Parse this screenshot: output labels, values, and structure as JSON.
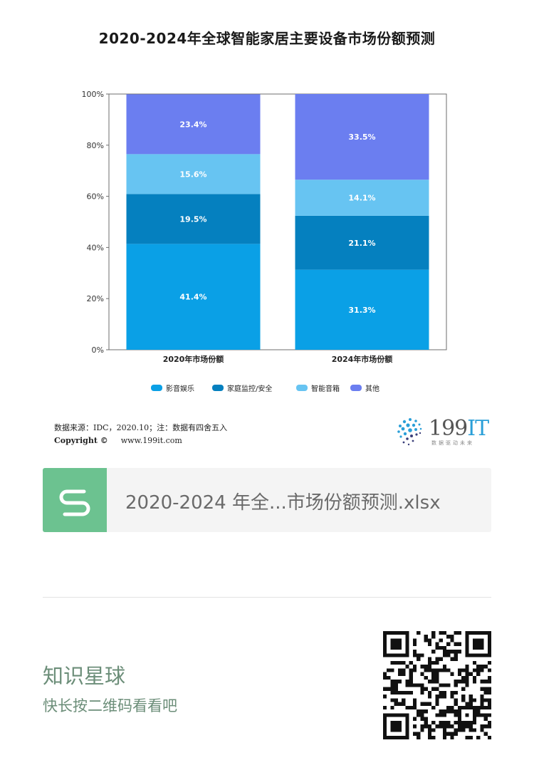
{
  "chart_data": {
    "type": "bar",
    "stacked": true,
    "title": "2020-2024年全球智能家居主要设备市场份额预测",
    "categories": [
      "2020年市场份额",
      "2024年市场份额"
    ],
    "series": [
      {
        "name": "影音娱乐",
        "color": "#0aa0e6",
        "values": [
          41.4,
          31.3
        ],
        "labels": [
          "41.4%",
          "31.3%"
        ]
      },
      {
        "name": "家庭监控/安全",
        "color": "#0580bf",
        "values": [
          19.5,
          21.1
        ],
        "labels": [
          "19.5%",
          "21.1%"
        ]
      },
      {
        "name": "智能音箱",
        "color": "#67c4f2",
        "values": [
          15.6,
          14.1
        ],
        "labels": [
          "15.6%",
          "14.1%"
        ]
      },
      {
        "name": "其他",
        "color": "#6b7ef0",
        "values": [
          23.4,
          33.5
        ],
        "labels": [
          "23.4%",
          "33.5%"
        ]
      }
    ],
    "ylim": [
      0,
      100
    ],
    "yticks": [
      "0%",
      "20%",
      "40%",
      "60%",
      "80%",
      "100%"
    ],
    "legend_position": "bottom",
    "grid": false
  },
  "source": {
    "text": "数据来源：IDC，2020.10；注：数据有四舍五入",
    "copyright": "Copyright ©",
    "website": "www.199it.com"
  },
  "logo": {
    "main": "199",
    "accent": "IT",
    "sub": "数据驱动未来"
  },
  "file_card": {
    "icon_letter": "S",
    "name": "2020-2024 年全...市场份额预测.xlsx"
  },
  "footer": {
    "title": "知识星球",
    "subtitle": "快长按二维码看看吧"
  }
}
